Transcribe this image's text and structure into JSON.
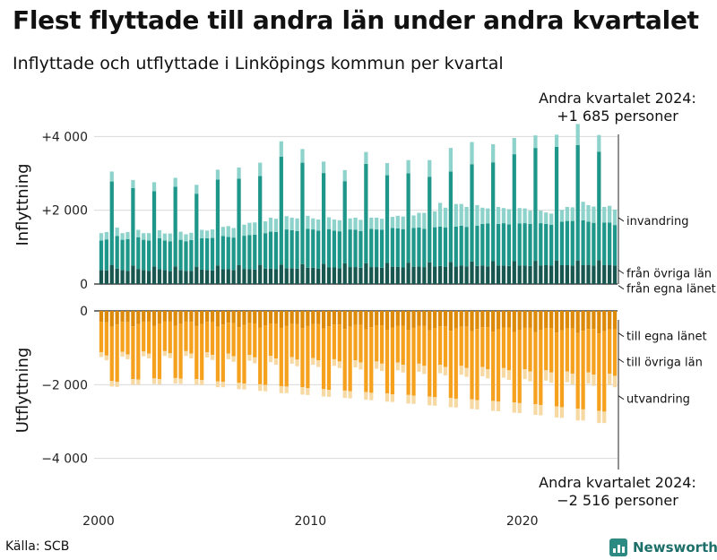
{
  "header": {
    "title": "Flest flyttade till andra län under andra kvartalet",
    "subtitle": "Inflyttade och utflyttade i Linköpings kommun per kvartal"
  },
  "footer": {
    "source": "Källa: SCB",
    "brand": "Newsworthy"
  },
  "colors": {
    "in_egna": "#17574f",
    "in_ovriga": "#1e978a",
    "in_invandring": "#8ed3cb",
    "out_egna": "#dd8a0a",
    "out_ovriga": "#f5a11e",
    "out_utvandring": "#f6d9a3",
    "grid": "#d9d9d9",
    "axis": "#222222",
    "brand": "#2d8a82"
  },
  "chart_data": {
    "type": "bar",
    "stacked": true,
    "x_start": {
      "year": 2000,
      "quarter": 1
    },
    "x_ticks": [
      "2000",
      "2010",
      "2020"
    ],
    "panels": [
      {
        "id": "inflyttning",
        "ylabel": "Inflyttning",
        "ylim": [
          0,
          4300
        ],
        "yticks": [
          {
            "value": 0,
            "label": "0"
          },
          {
            "value": 2000,
            "label": "+2 000"
          },
          {
            "value": 4000,
            "label": "+4 000"
          }
        ],
        "series": [
          {
            "name": "från egna länet",
            "color": "in_egna",
            "values": [
              380,
              370,
              520,
              420,
              380,
              360,
              500,
              410,
              380,
              360,
              480,
              400,
              380,
              350,
              480,
              380,
              360,
              360,
              470,
              390,
              380,
              370,
              500,
              400,
              400,
              380,
              510,
              410,
              400,
              390,
              520,
              420,
              420,
              400,
              530,
              430,
              430,
              420,
              540,
              440,
              440,
              420,
              550,
              450,
              450,
              430,
              560,
              460,
              460,
              440,
              560,
              460,
              460,
              440,
              570,
              470,
              470,
              450,
              580,
              470,
              480,
              460,
              590,
              480,
              490,
              470,
              600,
              480,
              500,
              480,
              610,
              490,
              500,
              480,
              620,
              500,
              500,
              490,
              620,
              500,
              500,
              490,
              630,
              500,
              510,
              500,
              640,
              510,
              510,
              500,
              640,
              510,
              520,
              500,
              650,
              510,
              520,
              500
            ]
          },
          {
            "name": "från övriga län",
            "color": "in_ovriga",
            "values": [
              800,
              840,
              2260,
              880,
              820,
              860,
              2100,
              860,
              820,
              820,
              2040,
              840,
              800,
              810,
              2160,
              820,
              800,
              830,
              1980,
              850,
              860,
              880,
              2330,
              900,
              880,
              880,
              2350,
              900,
              930,
              950,
              2410,
              960,
              1000,
              1010,
              2920,
              1050,
              1030,
              1020,
              2750,
              1060,
              1040,
              1030,
              2460,
              1040,
              1000,
              1000,
              2230,
              1020,
              1010,
              1000,
              2700,
              1040,
              1020,
              1030,
              2380,
              1050,
              1040,
              1040,
              2420,
              1050,
              1050,
              1040,
              2320,
              1060,
              1070,
              1060,
              2450,
              1080,
              1080,
              1070,
              2640,
              1090,
              1130,
              1160,
              2680,
              1130,
              1150,
              1130,
              2900,
              1140,
              1150,
              1140,
              3060,
              1150,
              1120,
              1110,
              3080,
              1180,
              1200,
              1210,
              3130,
              1220,
              1170,
              1160,
              2940,
              1160,
              1150,
              1100
            ]
          },
          {
            "name": "invandring",
            "color": "in_invandring",
            "values": [
              200,
              200,
              270,
              230,
              180,
              190,
              220,
              200,
              180,
              200,
              240,
              220,
              190,
              210,
              240,
              220,
              190,
              200,
              240,
              230,
              210,
              230,
              270,
              250,
              290,
              260,
              300,
              300,
              330,
              330,
              360,
              320,
              380,
              360,
              420,
              360,
              340,
              340,
              370,
              350,
              300,
              300,
              310,
              320,
              300,
              300,
              300,
              300,
              330,
              300,
              320,
              300,
              320,
              300,
              330,
              300,
              340,
              340,
              360,
              340,
              400,
              430,
              450,
              430,
              640,
              540,
              640,
              610,
              590,
              540,
              600,
              560,
              440,
              410,
              490,
              460,
              410,
              410,
              440,
              420,
              400,
              360,
              340,
              340,
              310,
              300,
              330,
              320,
              380,
              370,
              570,
              500,
              450,
              440,
              450,
              420,
              450,
              420
            ]
          }
        ],
        "labels": [
          {
            "text": "invandring",
            "value": 1800
          },
          {
            "text": "från övriga län",
            "value": 380
          },
          {
            "text": "från egna länet",
            "value": -40
          }
        ],
        "annotation": [
          "Andra kvartalet 2024:",
          "+1 685 personer"
        ]
      },
      {
        "id": "utflyttning",
        "ylabel": "Utflyttning",
        "ylim": [
          -4300,
          0
        ],
        "yticks": [
          {
            "value": 0,
            "label": "0"
          },
          {
            "value": -2000,
            "label": "−2 000"
          },
          {
            "value": -4000,
            "label": "−4 000"
          }
        ],
        "series": [
          {
            "name": "till egna länet",
            "color": "out_egna",
            "values": [
              -300,
              -310,
              -430,
              -370,
              -300,
              -300,
              -420,
              -360,
              -300,
              -290,
              -410,
              -350,
              -290,
              -290,
              -400,
              -350,
              -290,
              -300,
              -410,
              -360,
              -300,
              -310,
              -430,
              -370,
              -320,
              -330,
              -440,
              -380,
              -330,
              -340,
              -450,
              -390,
              -340,
              -350,
              -460,
              -400,
              -350,
              -360,
              -470,
              -410,
              -360,
              -360,
              -480,
              -420,
              -370,
              -370,
              -490,
              -430,
              -380,
              -380,
              -500,
              -440,
              -390,
              -390,
              -510,
              -450,
              -400,
              -400,
              -520,
              -460,
              -410,
              -410,
              -530,
              -470,
              -420,
              -420,
              -540,
              -480,
              -430,
              -430,
              -550,
              -490,
              -440,
              -440,
              -560,
              -500,
              -450,
              -450,
              -570,
              -510,
              -460,
              -460,
              -580,
              -520,
              -470,
              -470,
              -590,
              -530,
              -480,
              -480,
              -600,
              -540,
              -490,
              -490,
              -610,
              -550,
              -500,
              -500
            ]
          },
          {
            "name": "till övriga län",
            "color": "out_ovriga",
            "values": [
              -820,
              -900,
              -1470,
              -1550,
              -810,
              -880,
              -1430,
              -1500,
              -800,
              -870,
              -1420,
              -1500,
              -800,
              -860,
              -1420,
              -1490,
              -800,
              -860,
              -1440,
              -1510,
              -820,
              -880,
              -1480,
              -1550,
              -840,
              -900,
              -1510,
              -1590,
              -860,
              -920,
              -1540,
              -1620,
              -880,
              -940,
              -1580,
              -1650,
              -900,
              -960,
              -1600,
              -1680,
              -920,
              -980,
              -1640,
              -1720,
              -940,
              -1000,
              -1670,
              -1750,
              -960,
              -1020,
              -1700,
              -1780,
              -980,
              -1040,
              -1730,
              -1810,
              -1000,
              -1060,
              -1760,
              -1840,
              -1020,
              -1080,
              -1790,
              -1870,
              -1040,
              -1100,
              -1820,
              -1900,
              -1060,
              -1120,
              -1850,
              -1930,
              -1080,
              -1140,
              -1880,
              -1960,
              -1100,
              -1160,
              -1910,
              -1990,
              -1120,
              -1180,
              -1950,
              -2030,
              -1140,
              -1200,
              -2000,
              -2080,
              -1160,
              -1220,
              -2050,
              -2130,
              -1180,
              -1240,
              -2100,
              -2180,
              -1200,
              -1260
            ]
          },
          {
            "name": "utvandring",
            "color": "out_utvandring",
            "values": [
              -130,
              -130,
              -150,
              -140,
              -130,
              -130,
              -150,
              -140,
              -130,
              -130,
              -150,
              -140,
              -130,
              -130,
              -150,
              -140,
              -130,
              -130,
              -150,
              -140,
              -140,
              -140,
              -160,
              -150,
              -150,
              -150,
              -170,
              -160,
              -160,
              -160,
              -180,
              -170,
              -170,
              -170,
              -190,
              -180,
              -180,
              -180,
              -200,
              -190,
              -180,
              -180,
              -200,
              -190,
              -180,
              -180,
              -200,
              -190,
              -190,
              -190,
              -210,
              -200,
              -200,
              -200,
              -220,
              -210,
              -210,
              -210,
              -230,
              -220,
              -220,
              -220,
              -240,
              -230,
              -230,
              -230,
              -250,
              -240,
              -240,
              -240,
              -260,
              -250,
              -250,
              -250,
              -270,
              -260,
              -260,
              -260,
              -280,
              -270,
              -270,
              -270,
              -290,
              -280,
              -280,
              -280,
              -300,
              -290,
              -290,
              -290,
              -320,
              -300,
              -300,
              -300,
              -330,
              -310,
              -310,
              -310
            ]
          }
        ],
        "labels": [
          {
            "text": "till egna länet",
            "value": -600
          },
          {
            "text": "till övriga län",
            "value": -1300
          },
          {
            "text": "utvandring",
            "value": -2300
          }
        ],
        "annotation": [
          "Andra kvartalet 2024:",
          "−2 516 personer"
        ]
      }
    ]
  }
}
